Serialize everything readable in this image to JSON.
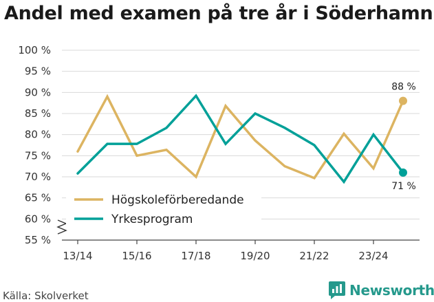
{
  "title": "Andel med examen på tre år i Söderhamn",
  "source": "Källa: Skolverket",
  "brand": "Newsworthy",
  "chart_data": {
    "type": "line",
    "title": "Andel med examen på tre år i Söderhamn",
    "xlabel": "",
    "ylabel": "",
    "ylim": [
      55,
      100
    ],
    "yticks": [
      "55 %",
      "60 %",
      "65 %",
      "70 %",
      "75 %",
      "80 %",
      "85 %",
      "90 %",
      "95 %",
      "100 %"
    ],
    "ytick_values": [
      55,
      60,
      65,
      70,
      75,
      80,
      85,
      90,
      95,
      100
    ],
    "x": [
      "13/14",
      "14/15",
      "15/16",
      "16/17",
      "17/18",
      "18/19",
      "19/20",
      "20/21",
      "21/22",
      "22/23",
      "23/24",
      "24/25"
    ],
    "xticks": [
      "13/14",
      "15/16",
      "17/18",
      "19/20",
      "21/22",
      "23/24"
    ],
    "axis_break": true,
    "grid": true,
    "legend": "bottom-left",
    "series": [
      {
        "name": "Högskoleförberedande",
        "color": "#dcb461",
        "values": [
          76,
          89,
          75,
          76.4,
          70,
          86.8,
          78.6,
          72.5,
          69.7,
          80.2,
          72,
          88
        ],
        "end_label": "88 %"
      },
      {
        "name": "Yrkesprogram",
        "color": "#00a098",
        "values": [
          70.8,
          77.8,
          77.8,
          81.6,
          89.2,
          77.8,
          85,
          81.6,
          77.5,
          68.8,
          80,
          71
        ],
        "end_label": "71 %"
      }
    ]
  }
}
